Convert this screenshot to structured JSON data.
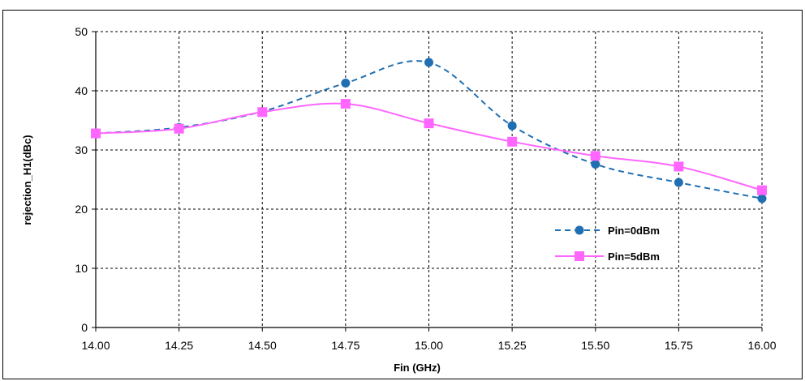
{
  "chart_data": {
    "type": "line",
    "title": "",
    "xlabel": "Fin (GHz)",
    "ylabel": "rejection_H1(dBc)",
    "xlim": [
      14.0,
      16.0
    ],
    "ylim": [
      0,
      50
    ],
    "x_ticks": [
      "14.00",
      "14.25",
      "14.50",
      "14.75",
      "15.00",
      "15.25",
      "15.50",
      "15.75",
      "16.00"
    ],
    "y_ticks": [
      "0",
      "10",
      "20",
      "30",
      "40",
      "50"
    ],
    "grid": true,
    "legend_position": "right-middle",
    "x": [
      14.0,
      14.25,
      14.5,
      14.75,
      15.0,
      15.25,
      15.5,
      15.75,
      16.0
    ],
    "series": [
      {
        "name": "Pin=0dBm",
        "values": [
          32.8,
          33.8,
          36.5,
          41.3,
          44.8,
          34.1,
          27.6,
          24.5,
          21.8
        ],
        "color": "#1f6fb2",
        "line_style": "dashed",
        "marker": "circle"
      },
      {
        "name": "Pin=5dBm",
        "values": [
          32.8,
          33.6,
          36.4,
          37.8,
          34.5,
          31.4,
          29.0,
          27.2,
          23.2
        ],
        "color": "#ff66ff",
        "line_style": "solid",
        "marker": "square"
      }
    ]
  }
}
